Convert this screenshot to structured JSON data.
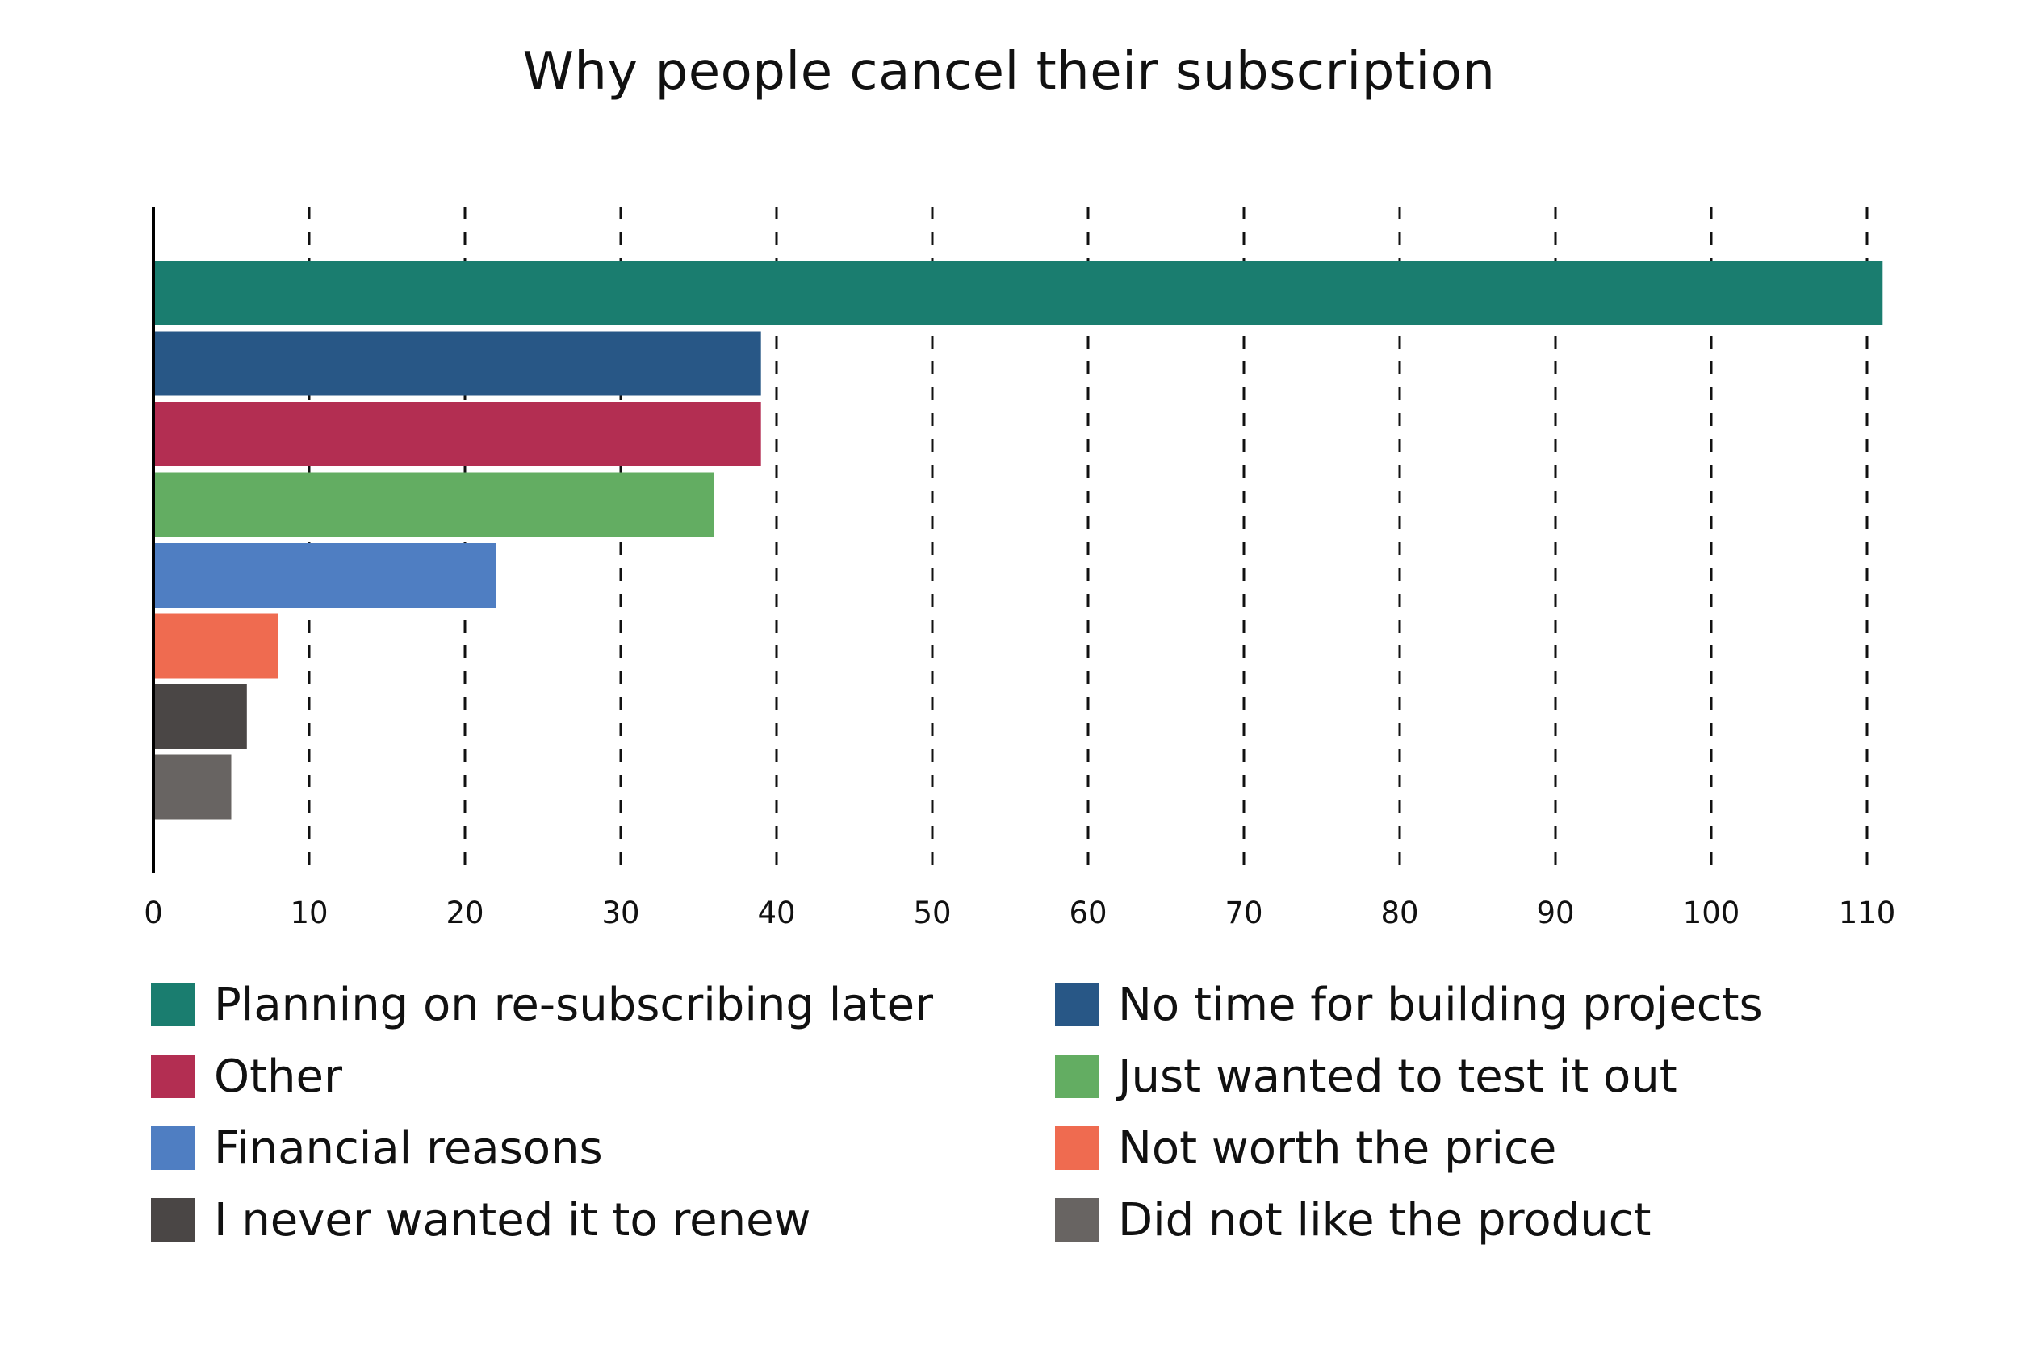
{
  "chart_data": {
    "type": "bar",
    "orientation": "horizontal",
    "title": "Why people cancel their subscription",
    "xlabel": "",
    "ylabel": "",
    "xlim": [
      0,
      110
    ],
    "x_ticks": [
      0,
      10,
      20,
      30,
      40,
      50,
      60,
      70,
      80,
      90,
      100,
      110
    ],
    "grid": "vertical dashed",
    "legend_position": "bottom",
    "categories": [
      "Planning on re-subscribing later",
      "No time for building projects",
      "Other",
      "Just wanted to test it out",
      "Financial reasons",
      "Not worth the price",
      "I never wanted it to renew",
      "Did not like the product"
    ],
    "values": [
      111,
      39,
      39,
      36,
      22,
      8,
      6,
      5
    ],
    "colors": [
      "#1a7d6f",
      "#285786",
      "#b32e52",
      "#63ad62",
      "#4f7ec2",
      "#ef6b50",
      "#4a4645",
      "#686462"
    ]
  }
}
